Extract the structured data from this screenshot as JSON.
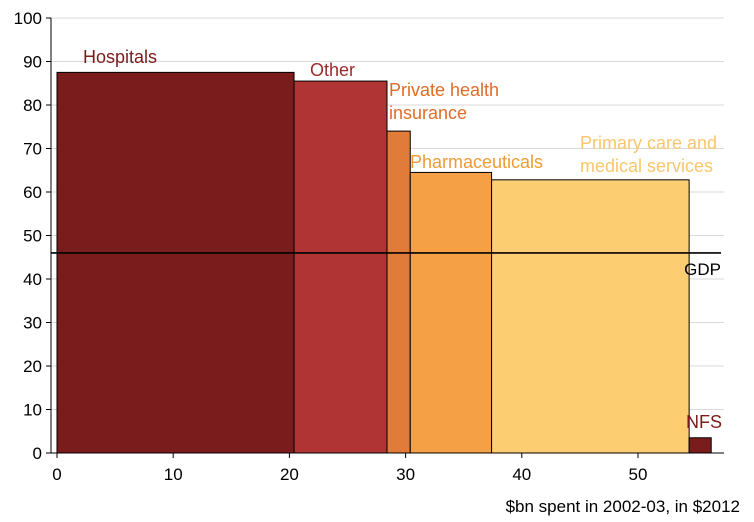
{
  "chart_data": {
    "type": "bar",
    "subtype": "variable-width (marimekko) bars",
    "xlabel": "$bn spent in 2002-03, in $2012",
    "ylabel": "",
    "xlim": [
      0,
      58
    ],
    "ylim": [
      0,
      100
    ],
    "x_ticks": [
      0,
      10,
      20,
      30,
      40,
      50
    ],
    "y_ticks": [
      0,
      10,
      20,
      30,
      40,
      50,
      60,
      70,
      80,
      90,
      100
    ],
    "grid": "horizontal",
    "bars": [
      {
        "label": "Hospitals",
        "label_lines": [
          "Hospitals"
        ],
        "x_start": 0,
        "x_end": 20.4,
        "value": 87.5,
        "color": "#7B1C1C",
        "label_color": "#7B1C1C"
      },
      {
        "label": "Other",
        "label_lines": [
          "Other"
        ],
        "x_start": 20.4,
        "x_end": 28.4,
        "value": 85.5,
        "color": "#B03434",
        "label_color": "#9E2A2A"
      },
      {
        "label": "Private health insurance",
        "label_lines": [
          "Private health",
          "insurance"
        ],
        "x_start": 28.4,
        "x_end": 30.4,
        "value": 74,
        "color": "#E07B39",
        "label_color": "#E06C2A"
      },
      {
        "label": "Pharmaceuticals",
        "label_lines": [
          "Pharmaceuticals"
        ],
        "x_start": 30.4,
        "x_end": 37.4,
        "value": 64.5,
        "color": "#F5A045",
        "label_color": "#F09A35"
      },
      {
        "label": "Primary care and medical services",
        "label_lines": [
          "Primary care and",
          "medical services"
        ],
        "x_start": 37.4,
        "x_end": 54.4,
        "value": 62.8,
        "color": "#FDCD72",
        "label_color": "#F8C66B"
      },
      {
        "label": "NFS",
        "label_lines": [
          "NFS"
        ],
        "x_start": 54.4,
        "x_end": 56.3,
        "value": 3.5,
        "color": "#7B1C1C",
        "label_color": "#7B1C1C"
      }
    ],
    "reference_line": {
      "label": "GDP",
      "value": 46,
      "color": "#000000"
    }
  }
}
